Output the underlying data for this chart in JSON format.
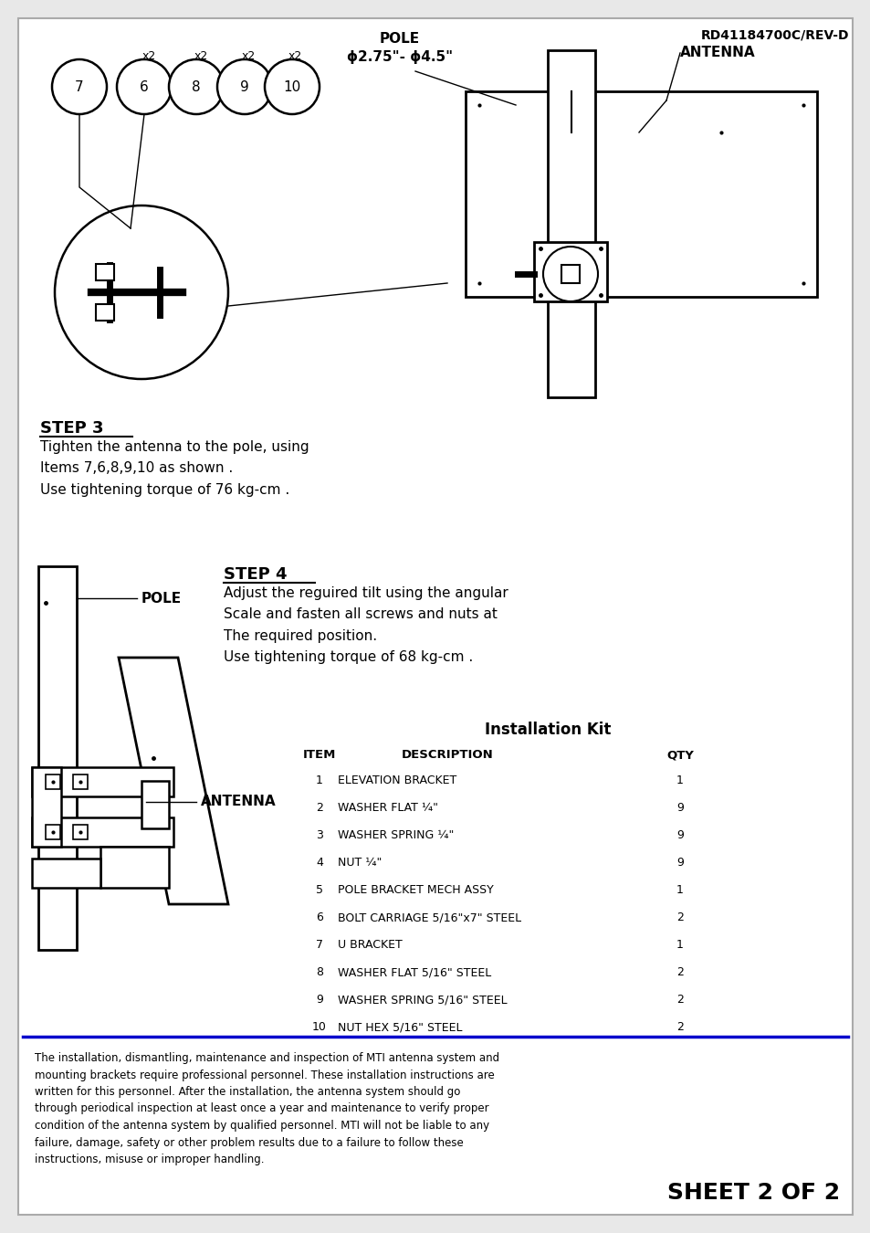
{
  "title_ref": "RD41184700C/REV-D",
  "bg_color": "#e8e8e8",
  "inner_bg": "#ffffff",
  "border_color": "#000000",
  "blue_line_color": "#0000cc",
  "step3_heading": "STEP 3",
  "step3_text": "Tighten the antenna to the pole, using\nItems 7,6,8,9,10 as shown .\nUse tightening torque of 76 kg-cm .",
  "step4_heading": "STEP 4",
  "step4_text": "Adjust the reguired tilt using the angular\nScale and fasten all screws and nuts at\nThe required position.\nUse tightening torque of 68 kg-cm .",
  "pole_label_top": "POLE",
  "pole_dim_top": "ϕ2.75\"- ϕ4.5\"",
  "antenna_label_top": "ANTENNA",
  "pole_label_bottom": "POLE",
  "antenna_label_bottom": "ANTENNA",
  "sheet_text": "SHEET 2 OF 2",
  "disclaimer": "The installation, dismantling, maintenance and inspection of MTI antenna system and\nmounting brackets require professional personnel. These installation instructions are\nwritten for this personnel. After the installation, the antenna system should go\nthrough periodical inspection at least once a year and maintenance to verify proper\ncondition of the antenna system by qualified personnel. MTI will not be liable to any\nfailure, damage, safety or other problem results due to a failure to follow these\ninstructions, misuse or improper handling.",
  "kit_title": "Installation Kit",
  "kit_headers": [
    "ITEM",
    "DESCRIPTION",
    "QTY"
  ],
  "kit_items": [
    [
      "1",
      "ELEVATION BRACKET",
      "1"
    ],
    [
      "2",
      "WASHER FLAT ¼\"",
      "9"
    ],
    [
      "3",
      "WASHER SPRING ¼\"",
      "9"
    ],
    [
      "4",
      "NUT ¼\"",
      "9"
    ],
    [
      "5",
      "POLE BRACKET MECH ASSY",
      "1"
    ],
    [
      "6",
      "BOLT CARRIAGE 5/16\"x7\" STEEL",
      "2"
    ],
    [
      "7",
      "U BRACKET",
      "1"
    ],
    [
      "8",
      "WASHER FLAT 5/16\" STEEL",
      "2"
    ],
    [
      "9",
      "WASHER SPRING 5/16\" STEEL",
      "2"
    ],
    [
      "10",
      "NUT HEX 5/16\" STEEL",
      "2"
    ]
  ]
}
